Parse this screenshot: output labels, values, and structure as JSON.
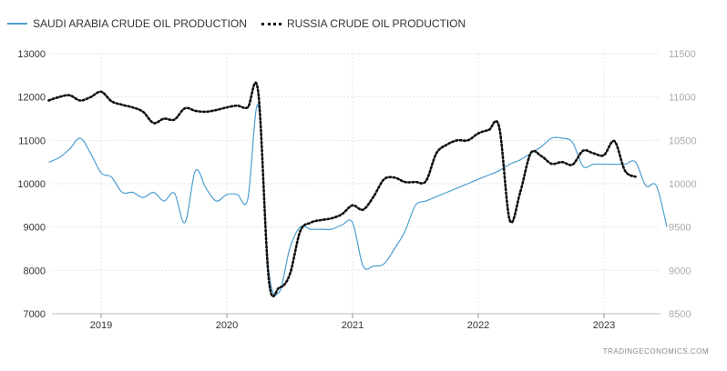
{
  "legend": {
    "series1": "SAUDI ARABIA CRUDE OIL PRODUCTION",
    "series2": "RUSSIA CRUDE OIL PRODUCTION"
  },
  "source": "TRADINGECONOMICS.COM",
  "chart_data": {
    "type": "line",
    "x_ticks": [
      "2019",
      "2020",
      "2021",
      "2022",
      "2023"
    ],
    "y_left": {
      "range": [
        7000,
        13000
      ],
      "ticks": [
        "7000",
        "8000",
        "9000",
        "10000",
        "11000",
        "12000",
        "13000"
      ]
    },
    "y_right": {
      "range": [
        8500,
        11500
      ],
      "ticks": [
        "8500",
        "9000",
        "9500",
        "10000",
        "10500",
        "11000",
        "11500"
      ]
    },
    "grid": true,
    "legend_position": "top-left",
    "colors": {
      "saudi": "#4d9ed1",
      "russia": "#111111"
    },
    "series": [
      {
        "name": "SAUDI ARABIA CRUDE OIL PRODUCTION",
        "axis": "left",
        "style": "solid",
        "points": [
          [
            "2018-08",
            10500
          ],
          [
            "2018-09",
            10600
          ],
          [
            "2018-10",
            10800
          ],
          [
            "2018-11",
            11050
          ],
          [
            "2018-12",
            10700
          ],
          [
            "2019-01",
            10250
          ],
          [
            "2019-02",
            10150
          ],
          [
            "2019-03",
            9800
          ],
          [
            "2019-04",
            9800
          ],
          [
            "2019-05",
            9680
          ],
          [
            "2019-06",
            9800
          ],
          [
            "2019-07",
            9600
          ],
          [
            "2019-08",
            9780
          ],
          [
            "2019-09",
            9100
          ],
          [
            "2019-10",
            10300
          ],
          [
            "2019-11",
            9900
          ],
          [
            "2019-12",
            9600
          ],
          [
            "2020-01",
            9750
          ],
          [
            "2020-02",
            9750
          ],
          [
            "2020-03",
            9650
          ],
          [
            "2020-04",
            11800
          ],
          [
            "2020-05",
            8000
          ],
          [
            "2020-06",
            7500
          ],
          [
            "2020-07",
            8500
          ],
          [
            "2020-08",
            9000
          ],
          [
            "2020-09",
            8950
          ],
          [
            "2020-10",
            8950
          ],
          [
            "2020-11",
            8950
          ],
          [
            "2020-12",
            9050
          ],
          [
            "2021-01",
            9100
          ],
          [
            "2021-02",
            8100
          ],
          [
            "2021-03",
            8100
          ],
          [
            "2021-04",
            8150
          ],
          [
            "2021-05",
            8500
          ],
          [
            "2021-06",
            8900
          ],
          [
            "2021-07",
            9500
          ],
          [
            "2021-08",
            9600
          ],
          [
            "2021-09",
            9700
          ],
          [
            "2021-10",
            9800
          ],
          [
            "2021-11",
            9900
          ],
          [
            "2021-12",
            10000
          ],
          [
            "2022-01",
            10100
          ],
          [
            "2022-02",
            10200
          ],
          [
            "2022-03",
            10300
          ],
          [
            "2022-04",
            10450
          ],
          [
            "2022-05",
            10550
          ],
          [
            "2022-06",
            10700
          ],
          [
            "2022-07",
            10850
          ],
          [
            "2022-08",
            11050
          ],
          [
            "2022-09",
            11050
          ],
          [
            "2022-10",
            10950
          ],
          [
            "2022-11",
            10400
          ],
          [
            "2022-12",
            10450
          ],
          [
            "2023-01",
            10450
          ],
          [
            "2023-02",
            10450
          ],
          [
            "2023-03",
            10450
          ],
          [
            "2023-04",
            10500
          ],
          [
            "2023-05",
            9950
          ],
          [
            "2023-06",
            9950
          ],
          [
            "2023-07",
            9000
          ]
        ]
      },
      {
        "name": "RUSSIA CRUDE OIL PRODUCTION",
        "axis": "right",
        "style": "dotted",
        "points": [
          [
            "2018-08",
            10960
          ],
          [
            "2018-09",
            11000
          ],
          [
            "2018-10",
            11020
          ],
          [
            "2018-11",
            10960
          ],
          [
            "2018-12",
            11000
          ],
          [
            "2019-01",
            11060
          ],
          [
            "2019-02",
            10950
          ],
          [
            "2019-03",
            10910
          ],
          [
            "2019-04",
            10880
          ],
          [
            "2019-05",
            10830
          ],
          [
            "2019-06",
            10700
          ],
          [
            "2019-07",
            10750
          ],
          [
            "2019-08",
            10740
          ],
          [
            "2019-09",
            10870
          ],
          [
            "2019-10",
            10840
          ],
          [
            "2019-11",
            10830
          ],
          [
            "2019-12",
            10850
          ],
          [
            "2020-01",
            10880
          ],
          [
            "2020-02",
            10900
          ],
          [
            "2020-03",
            10880
          ],
          [
            "2020-04",
            11050
          ],
          [
            "2020-05",
            8900
          ],
          [
            "2020-06",
            8800
          ],
          [
            "2020-07",
            8950
          ],
          [
            "2020-08",
            9450
          ],
          [
            "2020-09",
            9550
          ],
          [
            "2020-10",
            9580
          ],
          [
            "2020-11",
            9600
          ],
          [
            "2020-12",
            9650
          ],
          [
            "2021-01",
            9750
          ],
          [
            "2021-02",
            9700
          ],
          [
            "2021-03",
            9850
          ],
          [
            "2021-04",
            10050
          ],
          [
            "2021-05",
            10070
          ],
          [
            "2021-06",
            10020
          ],
          [
            "2021-07",
            10020
          ],
          [
            "2021-08",
            10030
          ],
          [
            "2021-09",
            10350
          ],
          [
            "2021-10",
            10450
          ],
          [
            "2021-11",
            10500
          ],
          [
            "2021-12",
            10500
          ],
          [
            "2022-01",
            10580
          ],
          [
            "2022-02",
            10620
          ],
          [
            "2022-03",
            10650
          ],
          [
            "2022-04",
            9580
          ],
          [
            "2022-05",
            9900
          ],
          [
            "2022-06",
            10350
          ],
          [
            "2022-07",
            10320
          ],
          [
            "2022-08",
            10230
          ],
          [
            "2022-09",
            10250
          ],
          [
            "2022-10",
            10220
          ],
          [
            "2022-11",
            10380
          ],
          [
            "2022-12",
            10350
          ],
          [
            "2023-01",
            10330
          ],
          [
            "2023-02",
            10490
          ],
          [
            "2023-03",
            10150
          ],
          [
            "2023-04",
            10080
          ]
        ]
      }
    ]
  }
}
